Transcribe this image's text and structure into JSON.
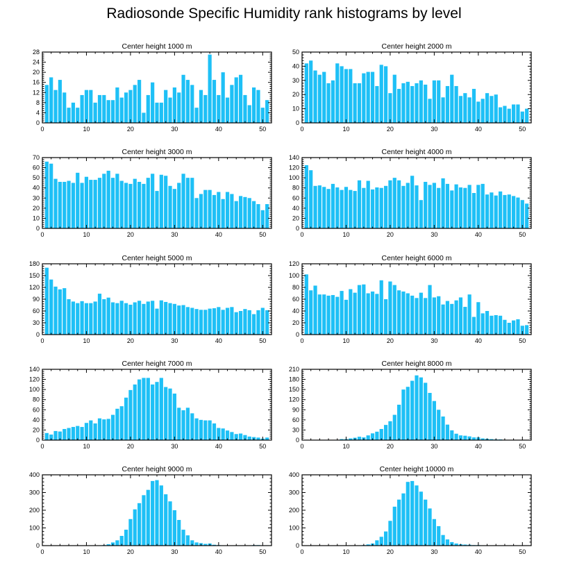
{
  "title": "Radiosonde Specific Humidity rank histograms by level",
  "colors": {
    "bar": "#1ec0f6",
    "axis": "#000000",
    "background": "#ffffff"
  },
  "chart_data": [
    {
      "type": "bar",
      "title": "Center height 1000 m",
      "x": [
        1,
        2,
        3,
        4,
        5,
        6,
        7,
        8,
        9,
        10,
        11,
        12,
        13,
        14,
        15,
        16,
        17,
        18,
        19,
        20,
        21,
        22,
        23,
        24,
        25,
        26,
        27,
        28,
        29,
        30,
        31,
        32,
        33,
        34,
        35,
        36,
        37,
        38,
        39,
        40,
        41,
        42,
        43,
        44,
        45,
        46,
        47,
        48,
        49,
        50,
        51
      ],
      "values": [
        15,
        18,
        13,
        17,
        12,
        6,
        8,
        6,
        11,
        13,
        13,
        8,
        11,
        11,
        9,
        9,
        14,
        10,
        12,
        13,
        15,
        17,
        4,
        11,
        16,
        8,
        8,
        13,
        10,
        14,
        12,
        19,
        17,
        15,
        6,
        13,
        11,
        27,
        17,
        11,
        20,
        10,
        15,
        18,
        19,
        11,
        7,
        14,
        13,
        6,
        9
      ],
      "xlim": [
        0,
        52
      ],
      "ylim": [
        0,
        28
      ],
      "xticks": [
        0,
        10,
        20,
        30,
        40,
        50
      ],
      "yticks": [
        0,
        4,
        8,
        12,
        16,
        20,
        24,
        28
      ]
    },
    {
      "type": "bar",
      "title": "Center height 2000 m",
      "x": [
        1,
        2,
        3,
        4,
        5,
        6,
        7,
        8,
        9,
        10,
        11,
        12,
        13,
        14,
        15,
        16,
        17,
        18,
        19,
        20,
        21,
        22,
        23,
        24,
        25,
        26,
        27,
        28,
        29,
        30,
        31,
        32,
        33,
        34,
        35,
        36,
        37,
        38,
        39,
        40,
        41,
        42,
        43,
        44,
        45,
        46,
        47,
        48,
        49,
        50,
        51
      ],
      "values": [
        42,
        44,
        37,
        34,
        36,
        28,
        30,
        42,
        40,
        38,
        38,
        28,
        28,
        35,
        36,
        36,
        26,
        41,
        40,
        21,
        34,
        24,
        28,
        29,
        26,
        28,
        30,
        27,
        17,
        30,
        30,
        18,
        26,
        34,
        26,
        19,
        21,
        18,
        24,
        15,
        17,
        21,
        19,
        20,
        11,
        12,
        10,
        13,
        13,
        8,
        10
      ],
      "xlim": [
        0,
        52
      ],
      "ylim": [
        0,
        50
      ],
      "xticks": [
        0,
        10,
        20,
        30,
        40,
        50
      ],
      "yticks": [
        0,
        10,
        20,
        30,
        40,
        50
      ]
    },
    {
      "type": "bar",
      "title": "Center height 3000 m",
      "x": [
        1,
        2,
        3,
        4,
        5,
        6,
        7,
        8,
        9,
        10,
        11,
        12,
        13,
        14,
        15,
        16,
        17,
        18,
        19,
        20,
        21,
        22,
        23,
        24,
        25,
        26,
        27,
        28,
        29,
        30,
        31,
        32,
        33,
        34,
        35,
        36,
        37,
        38,
        39,
        40,
        41,
        42,
        43,
        44,
        45,
        46,
        47,
        48,
        49,
        50,
        51
      ],
      "values": [
        66,
        64,
        49,
        46,
        46,
        47,
        45,
        55,
        45,
        51,
        48,
        48,
        50,
        54,
        57,
        50,
        54,
        47,
        45,
        44,
        49,
        46,
        44,
        50,
        54,
        37,
        53,
        52,
        42,
        39,
        45,
        54,
        50,
        50,
        30,
        34,
        38,
        38,
        33,
        36,
        29,
        36,
        34,
        27,
        32,
        31,
        30,
        27,
        24,
        18,
        24
      ],
      "xlim": [
        0,
        52
      ],
      "ylim": [
        0,
        70
      ],
      "xticks": [
        0,
        10,
        20,
        30,
        40,
        50
      ],
      "yticks": [
        0,
        10,
        20,
        30,
        40,
        50,
        60,
        70
      ]
    },
    {
      "type": "bar",
      "title": "Center height 4000 m",
      "x": [
        1,
        2,
        3,
        4,
        5,
        6,
        7,
        8,
        9,
        10,
        11,
        12,
        13,
        14,
        15,
        16,
        17,
        18,
        19,
        20,
        21,
        22,
        23,
        24,
        25,
        26,
        27,
        28,
        29,
        30,
        31,
        32,
        33,
        34,
        35,
        36,
        37,
        38,
        39,
        40,
        41,
        42,
        43,
        44,
        45,
        46,
        47,
        48,
        49,
        50,
        51
      ],
      "values": [
        125,
        115,
        84,
        85,
        82,
        78,
        88,
        81,
        76,
        82,
        76,
        74,
        95,
        80,
        94,
        77,
        81,
        80,
        84,
        95,
        100,
        95,
        84,
        90,
        104,
        85,
        56,
        92,
        86,
        90,
        80,
        99,
        88,
        75,
        87,
        81,
        80,
        86,
        70,
        86,
        88,
        67,
        71,
        65,
        73,
        66,
        67,
        64,
        61,
        56,
        49
      ],
      "xlim": [
        0,
        52
      ],
      "ylim": [
        0,
        140
      ],
      "xticks": [
        0,
        10,
        20,
        30,
        40,
        50
      ],
      "yticks": [
        0,
        20,
        40,
        60,
        80,
        100,
        120,
        140
      ]
    },
    {
      "type": "bar",
      "title": "Center height 5000 m",
      "x": [
        1,
        2,
        3,
        4,
        5,
        6,
        7,
        8,
        9,
        10,
        11,
        12,
        13,
        14,
        15,
        16,
        17,
        18,
        19,
        20,
        21,
        22,
        23,
        24,
        25,
        26,
        27,
        28,
        29,
        30,
        31,
        32,
        33,
        34,
        35,
        36,
        37,
        38,
        39,
        40,
        41,
        42,
        43,
        44,
        45,
        46,
        47,
        48,
        49,
        50,
        51
      ],
      "values": [
        170,
        140,
        122,
        115,
        118,
        90,
        84,
        80,
        85,
        80,
        80,
        84,
        104,
        90,
        94,
        82,
        80,
        86,
        80,
        76,
        82,
        86,
        78,
        84,
        86,
        66,
        87,
        83,
        80,
        78,
        74,
        75,
        70,
        68,
        65,
        63,
        63,
        66,
        67,
        70,
        63,
        68,
        70,
        57,
        60,
        65,
        62,
        52,
        62,
        68,
        62
      ],
      "xlim": [
        0,
        52
      ],
      "ylim": [
        0,
        180
      ],
      "xticks": [
        0,
        10,
        20,
        30,
        40,
        50
      ],
      "yticks": [
        0,
        30,
        60,
        90,
        120,
        150,
        180
      ]
    },
    {
      "type": "bar",
      "title": "Center height 6000 m",
      "x": [
        1,
        2,
        3,
        4,
        5,
        6,
        7,
        8,
        9,
        10,
        11,
        12,
        13,
        14,
        15,
        16,
        17,
        18,
        19,
        20,
        21,
        22,
        23,
        24,
        25,
        26,
        27,
        28,
        29,
        30,
        31,
        32,
        33,
        34,
        35,
        36,
        37,
        38,
        39,
        40,
        41,
        42,
        43,
        44,
        45,
        46,
        47,
        48,
        49,
        50,
        51
      ],
      "values": [
        102,
        75,
        83,
        68,
        68,
        66,
        67,
        64,
        74,
        59,
        77,
        71,
        84,
        85,
        70,
        73,
        69,
        92,
        60,
        90,
        84,
        75,
        73,
        70,
        66,
        62,
        71,
        62,
        84,
        63,
        65,
        51,
        57,
        52,
        58,
        63,
        47,
        68,
        30,
        55,
        36,
        40,
        32,
        33,
        32,
        25,
        20,
        24,
        26,
        15,
        16
      ],
      "xlim": [
        0,
        52
      ],
      "ylim": [
        0,
        120
      ],
      "xticks": [
        0,
        10,
        20,
        30,
        40,
        50
      ],
      "yticks": [
        0,
        20,
        40,
        60,
        80,
        100,
        120
      ]
    },
    {
      "type": "bar",
      "title": "Center height 7000 m",
      "x": [
        1,
        2,
        3,
        4,
        5,
        6,
        7,
        8,
        9,
        10,
        11,
        12,
        13,
        14,
        15,
        16,
        17,
        18,
        19,
        20,
        21,
        22,
        23,
        24,
        25,
        26,
        27,
        28,
        29,
        30,
        31,
        32,
        33,
        34,
        35,
        36,
        37,
        38,
        39,
        40,
        41,
        42,
        43,
        44,
        45,
        46,
        47,
        48,
        49,
        50,
        51
      ],
      "values": [
        14,
        11,
        18,
        17,
        22,
        24,
        26,
        28,
        26,
        34,
        39,
        33,
        43,
        41,
        42,
        50,
        62,
        67,
        84,
        99,
        110,
        120,
        123,
        123,
        110,
        115,
        123,
        105,
        102,
        92,
        64,
        59,
        64,
        53,
        43,
        40,
        39,
        39,
        33,
        24,
        23,
        19,
        16,
        12,
        13,
        10,
        7,
        6,
        5,
        3,
        5
      ],
      "xlim": [
        0,
        52
      ],
      "ylim": [
        0,
        140
      ],
      "xticks": [
        0,
        10,
        20,
        30,
        40,
        50
      ],
      "yticks": [
        0,
        20,
        40,
        60,
        80,
        100,
        120,
        140
      ]
    },
    {
      "type": "bar",
      "title": "Center height 8000 m",
      "x": [
        1,
        2,
        3,
        4,
        5,
        6,
        7,
        8,
        9,
        10,
        11,
        12,
        13,
        14,
        15,
        16,
        17,
        18,
        19,
        20,
        21,
        22,
        23,
        24,
        25,
        26,
        27,
        28,
        29,
        30,
        31,
        32,
        33,
        34,
        35,
        36,
        37,
        38,
        39,
        40,
        41,
        42,
        43,
        44,
        45,
        46,
        47,
        48,
        49,
        50,
        51
      ],
      "values": [
        0,
        0,
        0,
        0,
        0,
        0,
        0,
        0,
        3,
        3,
        5,
        7,
        10,
        8,
        14,
        20,
        25,
        33,
        45,
        56,
        75,
        105,
        150,
        158,
        176,
        192,
        186,
        170,
        140,
        116,
        90,
        70,
        46,
        29,
        19,
        14,
        13,
        11,
        8,
        8,
        5,
        4,
        3,
        2,
        2,
        1,
        1,
        1,
        0,
        0,
        1
      ],
      "xlim": [
        0,
        52
      ],
      "ylim": [
        0,
        210
      ],
      "xticks": [
        0,
        10,
        20,
        30,
        40,
        50
      ],
      "yticks": [
        0,
        30,
        60,
        90,
        120,
        150,
        180,
        210
      ]
    },
    {
      "type": "bar",
      "title": "Center height 9000 m",
      "x": [
        1,
        2,
        3,
        4,
        5,
        6,
        7,
        8,
        9,
        10,
        11,
        12,
        13,
        14,
        15,
        16,
        17,
        18,
        19,
        20,
        21,
        22,
        23,
        24,
        25,
        26,
        27,
        28,
        29,
        30,
        31,
        32,
        33,
        34,
        35,
        36,
        37,
        38,
        39,
        40,
        41,
        42,
        43,
        44,
        45,
        46,
        47,
        48,
        49,
        50,
        51
      ],
      "values": [
        0,
        0,
        0,
        0,
        0,
        0,
        0,
        0,
        0,
        0,
        0,
        0,
        2,
        3,
        8,
        18,
        30,
        55,
        90,
        150,
        205,
        240,
        285,
        315,
        365,
        370,
        340,
        290,
        250,
        200,
        145,
        90,
        58,
        30,
        18,
        14,
        10,
        12,
        5,
        3,
        2,
        1,
        1,
        2,
        1,
        0,
        0,
        3,
        3,
        1,
        2
      ],
      "xlim": [
        0,
        52
      ],
      "ylim": [
        0,
        400
      ],
      "xticks": [
        0,
        10,
        20,
        30,
        40,
        50
      ],
      "yticks": [
        0,
        100,
        200,
        300,
        400
      ]
    },
    {
      "type": "bar",
      "title": "Center height 10000 m",
      "x": [
        1,
        2,
        3,
        4,
        5,
        6,
        7,
        8,
        9,
        10,
        11,
        12,
        13,
        14,
        15,
        16,
        17,
        18,
        19,
        20,
        21,
        22,
        23,
        24,
        25,
        26,
        27,
        28,
        29,
        30,
        31,
        32,
        33,
        34,
        35,
        36,
        37,
        38,
        39,
        40,
        41,
        42,
        43,
        44,
        45,
        46,
        47,
        48,
        49,
        50,
        51
      ],
      "values": [
        0,
        0,
        0,
        0,
        0,
        0,
        0,
        0,
        0,
        0,
        0,
        0,
        2,
        3,
        7,
        12,
        30,
        50,
        80,
        140,
        220,
        260,
        295,
        360,
        365,
        340,
        305,
        260,
        210,
        150,
        110,
        60,
        35,
        20,
        12,
        8,
        6,
        5,
        3,
        3,
        2,
        2,
        1,
        1,
        1,
        0,
        0,
        0,
        0,
        0,
        0
      ],
      "xlim": [
        0,
        52
      ],
      "ylim": [
        0,
        400
      ],
      "xticks": [
        0,
        10,
        20,
        30,
        40,
        50
      ],
      "yticks": [
        0,
        100,
        200,
        300,
        400
      ]
    }
  ]
}
